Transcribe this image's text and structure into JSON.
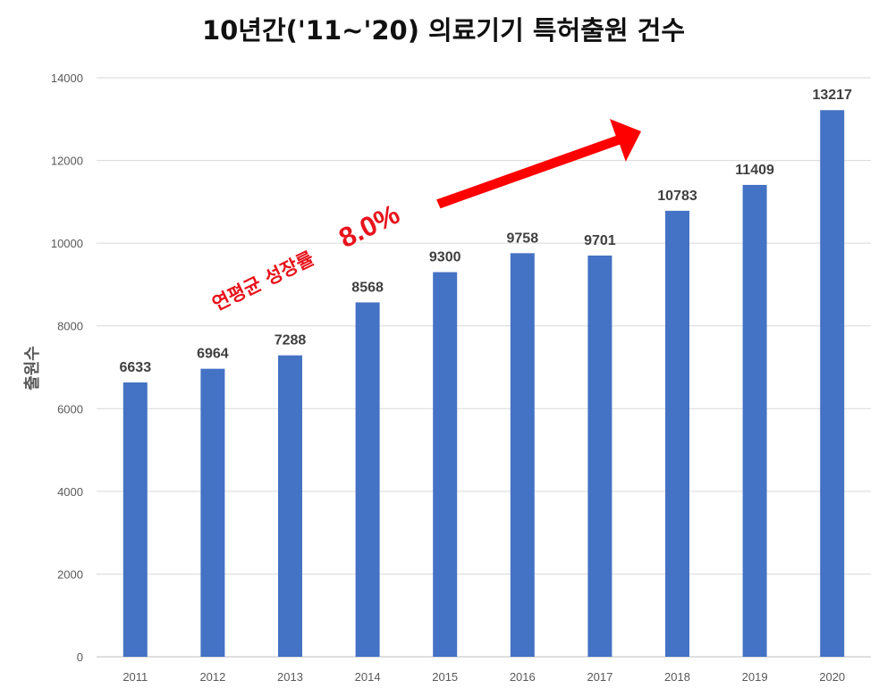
{
  "chart_data": {
    "type": "bar",
    "title": "10년간('11~'20) 의료기기 특허출원 건수",
    "xlabel": "",
    "ylabel": "출원수",
    "categories": [
      "2011",
      "2012",
      "2013",
      "2014",
      "2015",
      "2016",
      "2017",
      "2018",
      "2019",
      "2020"
    ],
    "values": [
      6633,
      6964,
      7288,
      8568,
      9300,
      9758,
      9701,
      10783,
      11409,
      13217
    ],
    "ylim": [
      0,
      14000
    ],
    "yticks": [
      "0",
      "2000",
      "4000",
      "6000",
      "8000",
      "10000",
      "12000",
      "14000"
    ],
    "grid": true,
    "bar_color": "#4472c4",
    "annotation": {
      "text": "연평균 성장률",
      "value": "8.0%",
      "color": "#e8141c"
    }
  }
}
